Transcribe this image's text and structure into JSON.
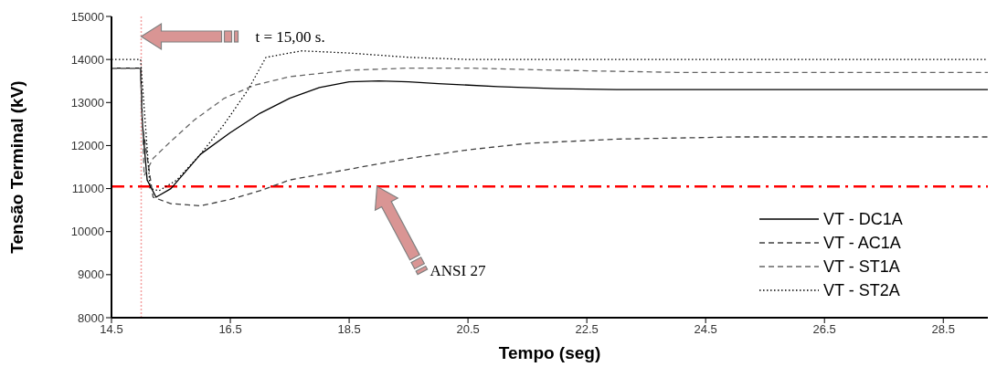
{
  "chart_data": {
    "type": "line",
    "xlabel": "Tempo (seg)",
    "ylabel": "Tensão Terminal (kV)",
    "xlim": [
      14.5,
      29.25
    ],
    "xticks": [
      14.5,
      16.5,
      18.5,
      20.5,
      22.5,
      24.5,
      26.5,
      28.5
    ],
    "ylim": [
      8000,
      15000
    ],
    "yticks": [
      8000,
      9000,
      10000,
      11000,
      12000,
      13000,
      14000,
      15000
    ],
    "legend": "bottom right",
    "marker": "none",
    "series": [
      {
        "name": "VT - DC1A",
        "color": "#000000",
        "line_style": "solid",
        "x": [
          14.5,
          14.99,
          15.02,
          15.1,
          15.25,
          15.5,
          16,
          16.5,
          17,
          17.5,
          18,
          18.5,
          19,
          19.5,
          20,
          21,
          22,
          23,
          24,
          26,
          29.25
        ],
        "values": [
          13800,
          13800,
          12500,
          11200,
          10800,
          11000,
          11800,
          12300,
          12750,
          13100,
          13350,
          13480,
          13500,
          13480,
          13440,
          13370,
          13320,
          13300,
          13300,
          13300,
          13300
        ]
      },
      {
        "name": "VT - AC1A",
        "color": "#404040",
        "line_style": "dashed",
        "x": [
          14.5,
          14.99,
          15.02,
          15.2,
          15.5,
          16,
          16.5,
          17,
          17.5,
          18.5,
          19.5,
          20.5,
          21.5,
          23,
          25,
          29.25
        ],
        "values": [
          13800,
          13800,
          12500,
          10800,
          10650,
          10600,
          10750,
          10950,
          11200,
          11450,
          11700,
          11900,
          12050,
          12150,
          12200,
          12200
        ]
      },
      {
        "name": "VT - ST1A",
        "color": "#666666",
        "line_style": "dashed",
        "x": [
          14.5,
          14.99,
          15.05,
          15.2,
          15.5,
          15.9,
          16.4,
          16.9,
          17.5,
          18.5,
          19.5,
          20.5,
          22,
          24,
          29.25
        ],
        "values": [
          13800,
          13800,
          11300,
          11700,
          12100,
          12600,
          13100,
          13400,
          13600,
          13750,
          13800,
          13800,
          13750,
          13700,
          13700
        ]
      },
      {
        "name": "VT - ST2A",
        "color": "#000000",
        "line_style": "dotted",
        "x": [
          14.5,
          14.99,
          15.15,
          15.3,
          15.6,
          16,
          16.4,
          16.8,
          17.1,
          17.7,
          18.5,
          19.5,
          20.5,
          29.25
        ],
        "values": [
          14000,
          14000,
          11000,
          10950,
          11200,
          11800,
          12500,
          13300,
          14050,
          14200,
          14150,
          14050,
          14000,
          14000
        ]
      }
    ],
    "ref_lines": [
      {
        "axis": "x",
        "value": 15,
        "color": "#f4a0a0",
        "line_style": "dotted"
      },
      {
        "axis": "y",
        "value": 11050,
        "color": "#ff0000",
        "line_style": "dashed"
      }
    ],
    "annotations": [
      "t = 15,00 s.",
      "ANSI 27"
    ]
  }
}
